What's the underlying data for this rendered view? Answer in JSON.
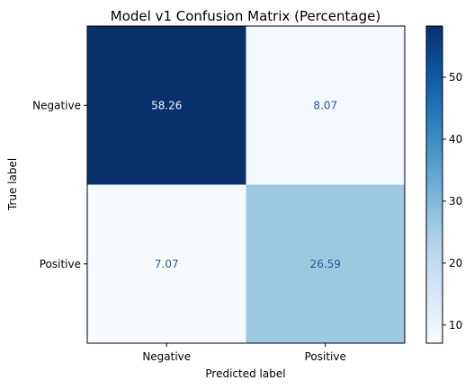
{
  "chart_data": {
    "type": "heatmap",
    "title": "Model v1 Confusion Matrix (Percentage)",
    "xlabel": "Predicted label",
    "ylabel": "True label",
    "x_categories": [
      "Negative",
      "Positive"
    ],
    "y_categories": [
      "Negative",
      "Positive"
    ],
    "values": [
      [
        58.26,
        8.07
      ],
      [
        7.07,
        26.59
      ]
    ],
    "colormap": "Blues",
    "colorbar": {
      "range": [
        7.07,
        58.26
      ],
      "ticks": [
        10,
        20,
        30,
        40,
        50
      ]
    },
    "grid": false,
    "colors": {
      "low": "#f7fbff",
      "high": "#08306b",
      "text_on_dark": "#f7fbff",
      "text_on_light": "#2a5a94"
    }
  }
}
